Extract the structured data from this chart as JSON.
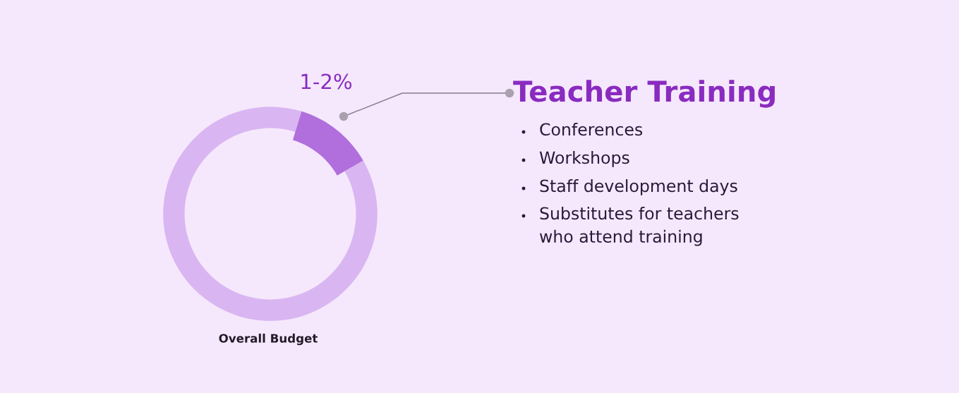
{
  "chart_data": {
    "type": "donut",
    "categories": [
      "Teacher Training",
      null
    ],
    "values": [
      12,
      88
    ],
    "colors": [
      "#b06fdc",
      "#d9b6f2"
    ],
    "annotations": [
      "1-2%",
      "Conferences",
      "Workshops",
      "Staff development days",
      "Substitutes for teachers\nwho attend training",
      "Overall Budget"
    ]
  }
}
